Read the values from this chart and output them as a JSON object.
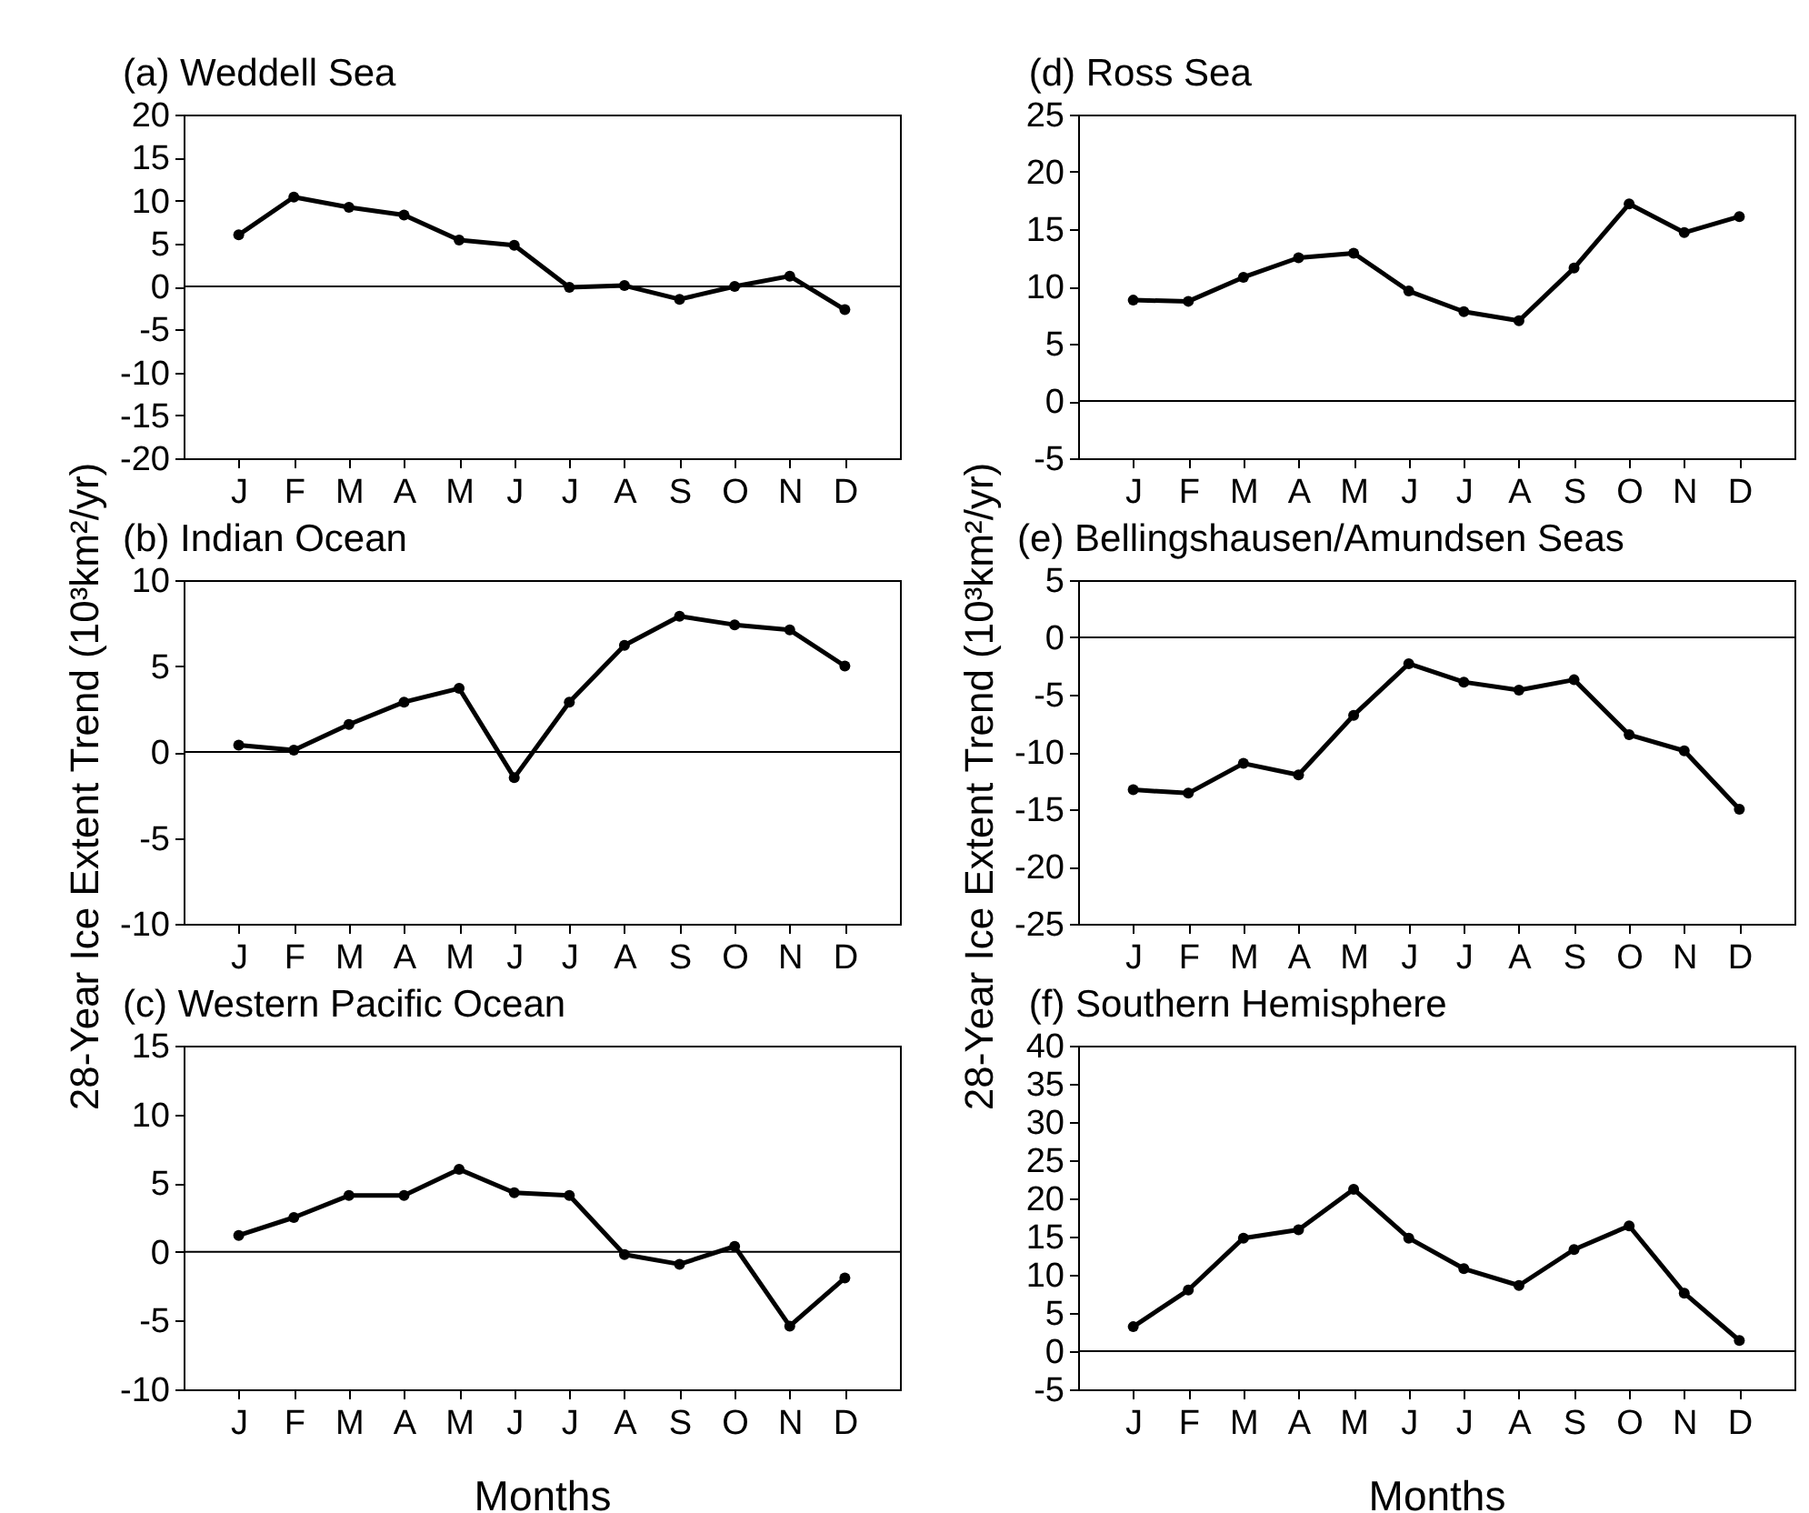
{
  "chart_data": [
    {
      "type": "line",
      "title": "(a) Weddell Sea",
      "categories": [
        "J",
        "F",
        "M",
        "A",
        "M",
        "J",
        "J",
        "A",
        "S",
        "O",
        "N",
        "D"
      ],
      "series": [
        {
          "color": "#000000",
          "values": [
            6.0,
            10.4,
            9.2,
            8.3,
            5.4,
            4.8,
            -0.1,
            0.1,
            -1.5,
            0.0,
            1.2,
            -2.7
          ]
        }
      ],
      "ylim": [
        -20,
        20
      ],
      "yticks": [
        -20,
        -15,
        -10,
        -5,
        0,
        5,
        10,
        15,
        20
      ],
      "marker": "circle",
      "line_style": "solid",
      "ref_lines": [
        {
          "axis": "y",
          "value": 0,
          "color": "#000000"
        }
      ]
    },
    {
      "type": "line",
      "title": "(b) Indian Ocean",
      "ylabel": "28-Year Ice Extent Trend (10³km²/yr)",
      "categories": [
        "J",
        "F",
        "M",
        "A",
        "M",
        "J",
        "J",
        "A",
        "S",
        "O",
        "N",
        "D"
      ],
      "series": [
        {
          "color": "#000000",
          "values": [
            0.4,
            0.1,
            1.6,
            2.9,
            3.7,
            -1.5,
            2.9,
            6.2,
            7.9,
            7.4,
            7.1,
            5.0
          ]
        }
      ],
      "ylim": [
        -10,
        10
      ],
      "yticks": [
        -10,
        -5,
        0,
        5,
        10
      ],
      "marker": "circle",
      "line_style": "solid",
      "ref_lines": [
        {
          "axis": "y",
          "value": 0,
          "color": "#000000"
        }
      ]
    },
    {
      "type": "line",
      "title": "(c) Western Pacific Ocean",
      "xlabel": "Months",
      "categories": [
        "J",
        "F",
        "M",
        "A",
        "M",
        "J",
        "J",
        "A",
        "S",
        "O",
        "N",
        "D"
      ],
      "series": [
        {
          "color": "#000000",
          "values": [
            1.2,
            2.5,
            4.1,
            4.1,
            6.0,
            4.3,
            4.1,
            -0.2,
            -0.9,
            0.4,
            -5.4,
            -1.9
          ]
        }
      ],
      "ylim": [
        -10,
        15
      ],
      "yticks": [
        -10,
        -5,
        0,
        5,
        10,
        15
      ],
      "marker": "circle",
      "line_style": "solid",
      "ref_lines": [
        {
          "axis": "y",
          "value": 0,
          "color": "#000000"
        }
      ]
    },
    {
      "type": "line",
      "title": "(d) Ross Sea",
      "categories": [
        "J",
        "F",
        "M",
        "A",
        "M",
        "J",
        "J",
        "A",
        "S",
        "O",
        "N",
        "D"
      ],
      "series": [
        {
          "color": "#000000",
          "values": [
            8.8,
            8.7,
            10.8,
            12.5,
            12.9,
            9.6,
            7.8,
            7.0,
            11.6,
            17.2,
            14.7,
            16.1
          ]
        }
      ],
      "ylim": [
        -5,
        25
      ],
      "yticks": [
        -5,
        0,
        5,
        10,
        15,
        20,
        25
      ],
      "marker": "circle",
      "line_style": "solid",
      "ref_lines": [
        {
          "axis": "y",
          "value": 0,
          "color": "#000000"
        }
      ]
    },
    {
      "type": "line",
      "title": "(e) Bellingshausen/Amundsen Seas",
      "ylabel": "28-Year Ice Extent Trend (10³km²/yr)",
      "categories": [
        "J",
        "F",
        "M",
        "A",
        "M",
        "J",
        "J",
        "A",
        "S",
        "O",
        "N",
        "D"
      ],
      "series": [
        {
          "color": "#000000",
          "values": [
            -13.3,
            -13.6,
            -11.0,
            -12.0,
            -6.8,
            -2.3,
            -3.9,
            -4.6,
            -3.7,
            -8.5,
            -9.9,
            -15.0
          ]
        }
      ],
      "ylim": [
        -25,
        5
      ],
      "yticks": [
        -25,
        -20,
        -15,
        -10,
        -5,
        0,
        5
      ],
      "marker": "circle",
      "line_style": "solid",
      "ref_lines": [
        {
          "axis": "y",
          "value": 0,
          "color": "#000000"
        }
      ]
    },
    {
      "type": "line",
      "title": "(f) Southern Hemisphere",
      "xlabel": "Months",
      "categories": [
        "J",
        "F",
        "M",
        "A",
        "M",
        "J",
        "J",
        "A",
        "S",
        "O",
        "N",
        "D"
      ],
      "series": [
        {
          "color": "#000000",
          "values": [
            3.2,
            8.0,
            14.8,
            15.9,
            21.2,
            14.8,
            10.8,
            8.6,
            13.3,
            16.4,
            7.6,
            1.4
          ]
        }
      ],
      "ylim": [
        -5,
        40
      ],
      "yticks": [
        -5,
        0,
        5,
        10,
        15,
        20,
        25,
        30,
        35,
        40
      ],
      "marker": "circle",
      "line_style": "solid",
      "ref_lines": [
        {
          "axis": "y",
          "value": 0,
          "color": "#000000"
        }
      ]
    }
  ]
}
